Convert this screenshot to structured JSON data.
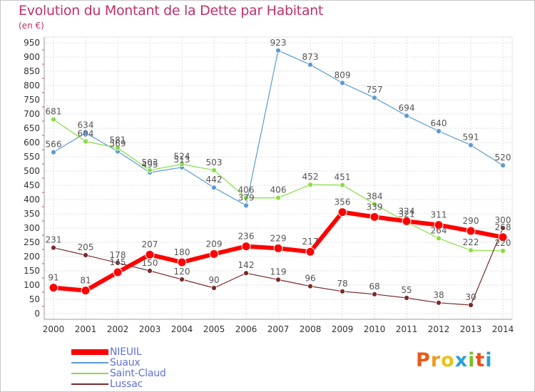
{
  "header": {
    "title": "Evolution du Montant de la Dette par Habitant",
    "unit": "(en €)"
  },
  "logo": {
    "text": "Proxiti",
    "colors": [
      "#e85a1a",
      "#f09c1c",
      "#e8c21a",
      "#2c9fd8",
      "#7bbf2a",
      "#e8501a",
      "#2c9fd8"
    ]
  },
  "chart_data": {
    "type": "line",
    "title": "Evolution du Montant de la Dette par Habitant",
    "ylabel": "(en €)",
    "xlabel": "",
    "ylim": [
      0,
      950
    ],
    "yticks": [
      0,
      50,
      100,
      150,
      200,
      250,
      300,
      350,
      400,
      450,
      500,
      550,
      600,
      650,
      700,
      750,
      800,
      850,
      900,
      950
    ],
    "categories": [
      "2000",
      "2001",
      "2002",
      "2003",
      "2004",
      "2005",
      "2006",
      "2007",
      "2008",
      "2009",
      "2010",
      "2011",
      "2012",
      "2013",
      "2014"
    ],
    "grid": true,
    "legend_position": "bottom-left",
    "series": [
      {
        "name": "NIEUIL",
        "color": "#ff0000",
        "values": [
          91,
          81,
          145,
          207,
          180,
          209,
          236,
          229,
          217,
          356,
          339,
          324,
          311,
          290,
          268
        ]
      },
      {
        "name": "Suaux",
        "color": "#5b9bd5",
        "values": [
          566,
          634,
          569,
          495,
          513,
          442,
          379,
          923,
          873,
          809,
          757,
          694,
          640,
          591,
          520
        ]
      },
      {
        "name": "Saint-Claud",
        "color": "#88dd44",
        "values": [
          681,
          604,
          581,
          503,
          524,
          503,
          406,
          406,
          452,
          451,
          384,
          321,
          264,
          222,
          220
        ]
      },
      {
        "name": "Lussac",
        "color": "#7a2a2a",
        "values": [
          231,
          205,
          178,
          150,
          120,
          90,
          142,
          119,
          96,
          78,
          68,
          55,
          38,
          30,
          300
        ]
      }
    ]
  }
}
